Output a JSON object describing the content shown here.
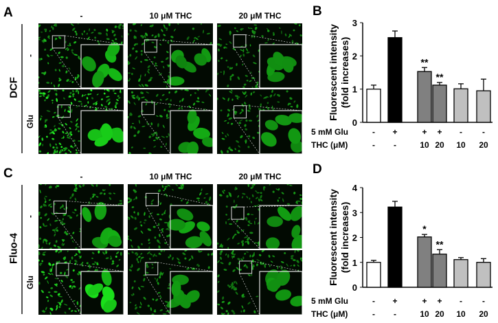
{
  "panels": {
    "A": {
      "letter": "A",
      "stain": "DCF",
      "columns": [
        "-",
        "10 μM THC",
        "20 μM THC"
      ],
      "rows": [
        "-",
        "Glu"
      ],
      "brightness": [
        [
          0.6,
          0.45,
          0.4
        ],
        [
          1.0,
          0.5,
          0.45
        ]
      ]
    },
    "C": {
      "letter": "C",
      "stain": "Fluo-4",
      "columns": [
        "-",
        "10 μM THC",
        "20 μM THC"
      ],
      "rows": [
        "-",
        "Glu"
      ],
      "brightness": [
        [
          0.55,
          0.5,
          0.45
        ],
        [
          0.9,
          0.45,
          0.45
        ]
      ]
    }
  },
  "colors": {
    "cells": "#2fd12f",
    "background": "#020a02"
  },
  "chart_data": [
    {
      "type": "bar",
      "letter": "B",
      "ylabel": [
        "Fluorescent intensity",
        "(fold increases)"
      ],
      "ylim": [
        0,
        3
      ],
      "yticks": [
        "0",
        "1",
        "2",
        "3"
      ],
      "row_labels": [
        "5 mM Glu",
        "THC (μM)"
      ],
      "glu": [
        "-",
        "+",
        "+",
        "+",
        "-",
        "-"
      ],
      "thc": [
        "-",
        "-",
        "10",
        "20",
        "10",
        "20"
      ],
      "values": [
        1.0,
        2.55,
        1.53,
        1.12,
        1.01,
        0.95
      ],
      "errors": [
        0.12,
        0.2,
        0.12,
        0.08,
        0.15,
        0.35
      ],
      "significance": [
        "",
        "",
        "**",
        "**",
        "",
        ""
      ],
      "bar_colors": [
        "#ffffff",
        "#000000",
        "#808080",
        "#808080",
        "#c0c0c0",
        "#c0c0c0"
      ]
    },
    {
      "type": "bar",
      "letter": "D",
      "ylabel": [
        "Fluorescent intensity",
        "(fold increases)"
      ],
      "ylim": [
        0,
        4
      ],
      "yticks": [
        "0",
        "1",
        "2",
        "3",
        "4"
      ],
      "row_labels": [
        "5 mM Glu",
        "THC (μM)"
      ],
      "glu": [
        "-",
        "+",
        "+",
        "+",
        "-",
        "-"
      ],
      "thc": [
        "-",
        "-",
        "10",
        "20",
        "10",
        "20"
      ],
      "values": [
        1.0,
        3.22,
        2.02,
        1.33,
        1.11,
        1.0
      ],
      "errors": [
        0.08,
        0.23,
        0.1,
        0.18,
        0.08,
        0.15
      ],
      "significance": [
        "",
        "",
        "*",
        "**",
        "",
        ""
      ],
      "bar_colors": [
        "#ffffff",
        "#000000",
        "#808080",
        "#808080",
        "#c0c0c0",
        "#c0c0c0"
      ]
    }
  ]
}
